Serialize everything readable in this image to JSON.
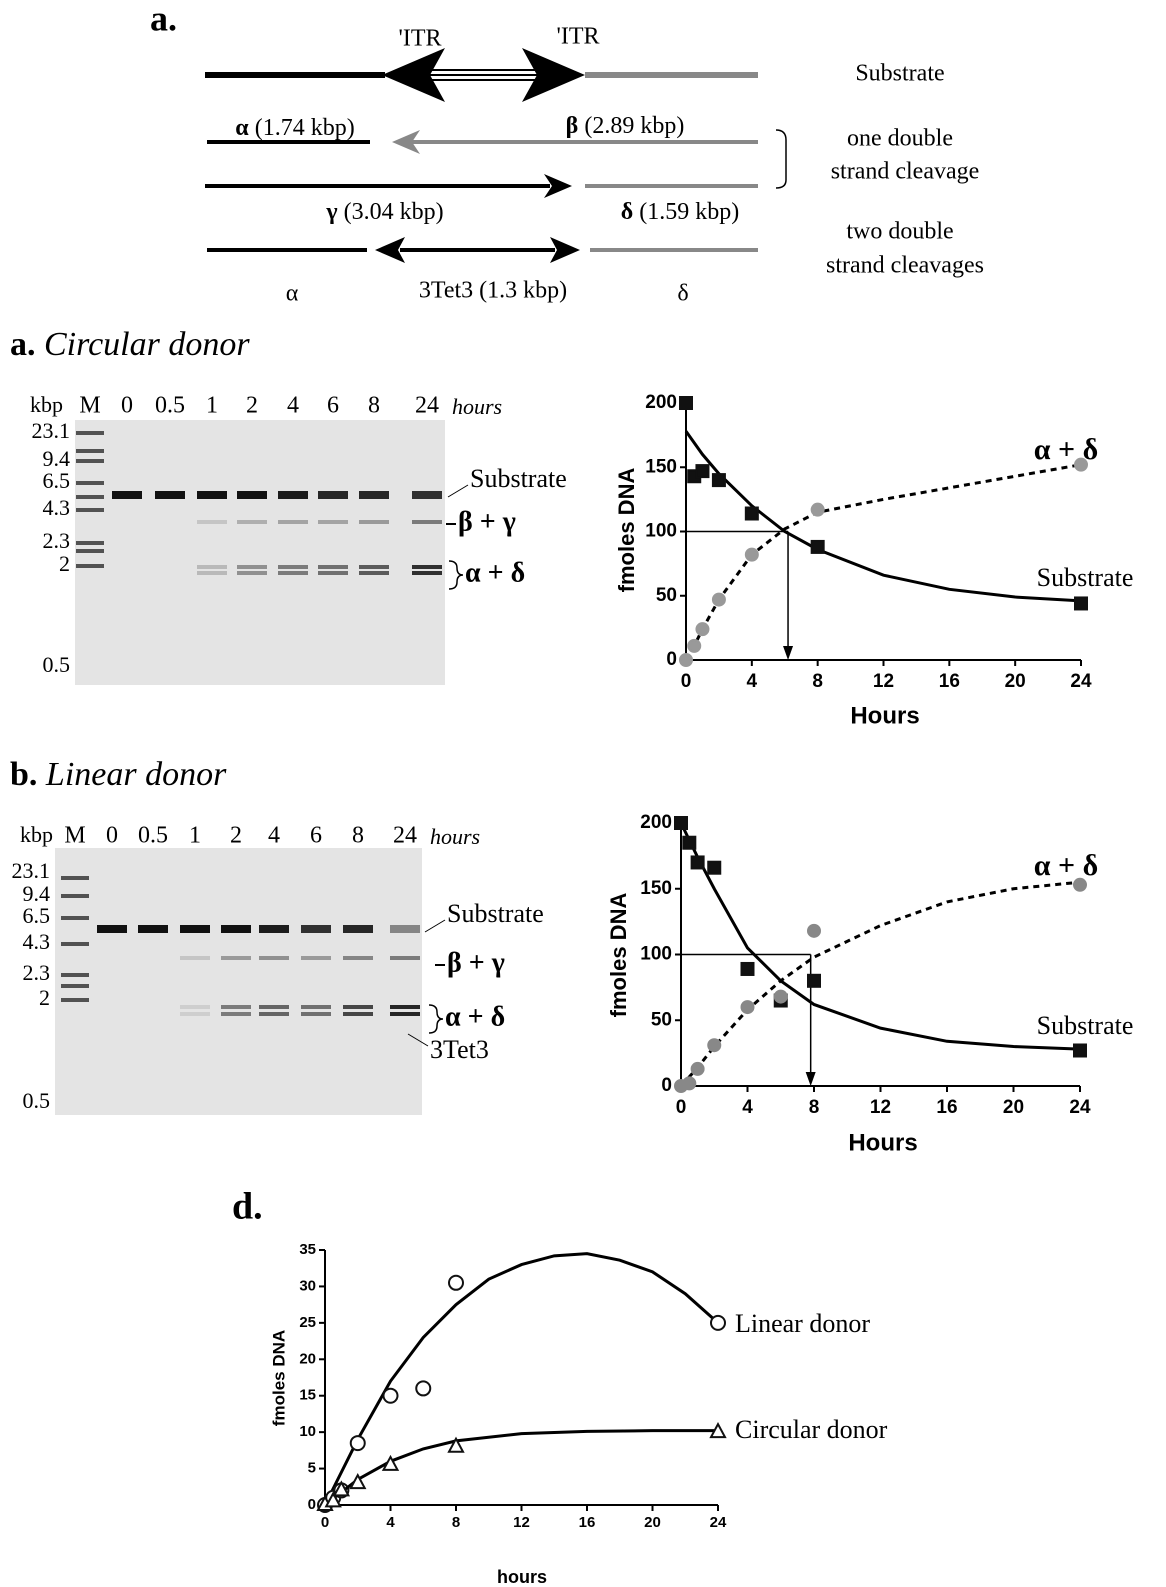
{
  "diagram": {
    "label": "a.",
    "itr_left": "'ITR",
    "itr_right": "'ITR",
    "substrate": "Substrate",
    "alpha_sym": "α",
    "alpha_size": "(1.74 kbp)",
    "beta_sym": "β",
    "beta_size": "(2.89 kbp)",
    "gamma_sym": "γ",
    "gamma_size": "(3.04 kbp)",
    "delta_sym": "δ",
    "delta_size": "(1.59 kbp)",
    "one_cleavage": [
      "one double",
      "strand cleavage"
    ],
    "two_cleavages": [
      "two double",
      "strand cleavages"
    ],
    "alpha_short": "α",
    "tet": "3Tet3 (1.3 kbp)",
    "delta_short": "δ"
  },
  "gels": [
    {
      "label": "a.",
      "title": "Circular donor",
      "kbp": "kbp",
      "lanes": [
        "M",
        "0",
        "0.5",
        "1",
        "2",
        "4",
        "6",
        "8",
        "24"
      ],
      "unit": "hours",
      "markers": [
        "23.1",
        "9.4",
        "6.5",
        "4.3",
        "2.3",
        "2",
        "0.5"
      ],
      "bands": [
        "Substrate",
        "β + γ",
        "α + δ"
      ]
    },
    {
      "label": "b.",
      "title": "Linear donor",
      "kbp": "kbp",
      "lanes": [
        "M",
        "0",
        "0.5",
        "1",
        "2",
        "4",
        "6",
        "8",
        "24"
      ],
      "unit": "hours",
      "markers": [
        "23.1",
        "9.4",
        "6.5",
        "4.3",
        "2.3",
        "2",
        "0.5"
      ],
      "bands": [
        "Substrate",
        "β + γ",
        "α + δ",
        "3Tet3"
      ]
    }
  ],
  "chart_data": [
    {
      "type": "scatter",
      "xlabel": "Hours",
      "ylabel": "fmoles DNA",
      "xlim": [
        0,
        24
      ],
      "ylim": [
        0,
        200
      ],
      "xticks": [
        0,
        4,
        8,
        12,
        16,
        20,
        24
      ],
      "yticks": [
        0,
        50,
        100,
        150,
        200
      ],
      "reference": {
        "x": 6.2,
        "y": 100
      },
      "series": [
        {
          "name": "Substrate",
          "color": "#111111",
          "marker": "square",
          "filled": true,
          "dash": false,
          "x": [
            0,
            0.5,
            1,
            2,
            4,
            8,
            24
          ],
          "values": [
            200,
            143,
            147,
            140,
            114,
            88,
            44
          ],
          "fit_x": [
            0,
            1,
            2,
            4,
            6,
            8,
            12,
            16,
            20,
            24
          ],
          "fit_values": [
            178,
            160,
            145,
            120,
            100,
            86,
            66,
            55,
            49,
            46
          ]
        },
        {
          "name": "α + δ",
          "color": "#999999",
          "marker": "circle",
          "filled": true,
          "dash": true,
          "x": [
            0,
            0.5,
            1,
            2,
            4,
            8,
            24
          ],
          "values": [
            0,
            11,
            24,
            47,
            82,
            117,
            152
          ],
          "fit_x": [
            0,
            0.5,
            1,
            2,
            4,
            6,
            8,
            12,
            16,
            20,
            24
          ],
          "fit_values": [
            0,
            11,
            24,
            47,
            82,
            102,
            115,
            125,
            134,
            143,
            152
          ]
        }
      ]
    },
    {
      "type": "scatter",
      "xlabel": "Hours",
      "ylabel": "fmoles DNA",
      "xlim": [
        0,
        24
      ],
      "ylim": [
        0,
        200
      ],
      "xticks": [
        0,
        4,
        8,
        12,
        16,
        20,
        24
      ],
      "yticks": [
        0,
        50,
        100,
        150,
        200
      ],
      "reference": {
        "x": 7.8,
        "y": 100
      },
      "series": [
        {
          "name": "Substrate",
          "color": "#111111",
          "marker": "square",
          "filled": true,
          "dash": false,
          "x": [
            0,
            0.5,
            1,
            2,
            4,
            6,
            8,
            24
          ],
          "values": [
            200,
            185,
            170,
            166,
            89,
            65,
            80,
            27
          ],
          "fit_x": [
            0,
            1,
            2,
            4,
            6,
            8,
            12,
            16,
            20,
            24
          ],
          "fit_values": [
            200,
            174,
            150,
            105,
            80,
            62,
            44,
            34,
            30,
            28
          ]
        },
        {
          "name": "α + δ",
          "color": "#888888",
          "marker": "circle",
          "filled": true,
          "dash": true,
          "x": [
            0,
            0.5,
            1,
            2,
            4,
            6,
            8,
            24
          ],
          "values": [
            0,
            2,
            13,
            31,
            60,
            68,
            118,
            153
          ],
          "fit_x": [
            0,
            1,
            2,
            4,
            6,
            8,
            12,
            16,
            20,
            24
          ],
          "fit_values": [
            0,
            14,
            30,
            58,
            80,
            98,
            122,
            140,
            150,
            155
          ]
        }
      ]
    },
    {
      "type": "scatter",
      "title": "d.",
      "xlabel": "hours",
      "ylabel": "fmoles DNA",
      "xlim": [
        0,
        24
      ],
      "ylim": [
        0,
        35
      ],
      "xticks": [
        0,
        4,
        8,
        12,
        16,
        20,
        24
      ],
      "yticks": [
        0,
        5,
        10,
        15,
        20,
        25,
        30,
        35
      ],
      "series": [
        {
          "name": "Linear donor",
          "color": "#111111",
          "marker": "circle",
          "filled": false,
          "dash": false,
          "x": [
            0,
            0.5,
            1,
            2,
            4,
            6,
            8,
            24
          ],
          "values": [
            0,
            1,
            2,
            8.5,
            15,
            16,
            30.5,
            25
          ],
          "fit_x": [
            0,
            2,
            4,
            6,
            8,
            10,
            12,
            14,
            16,
            18,
            20,
            22,
            24
          ],
          "fit_values": [
            0,
            9,
            17,
            23,
            27.5,
            31,
            33,
            34.2,
            34.5,
            33.6,
            32,
            29,
            25
          ]
        },
        {
          "name": "Circular donor",
          "color": "#111111",
          "marker": "triangle",
          "filled": false,
          "dash": false,
          "x": [
            0,
            0.5,
            1,
            2,
            4,
            8,
            24
          ],
          "values": [
            0,
            0.5,
            2,
            3,
            5.5,
            8,
            10
          ],
          "fit_x": [
            0,
            2,
            4,
            6,
            8,
            12,
            16,
            20,
            24
          ],
          "fit_values": [
            0,
            3.5,
            6,
            7.7,
            8.8,
            9.8,
            10.1,
            10.2,
            10.2
          ]
        }
      ]
    }
  ]
}
